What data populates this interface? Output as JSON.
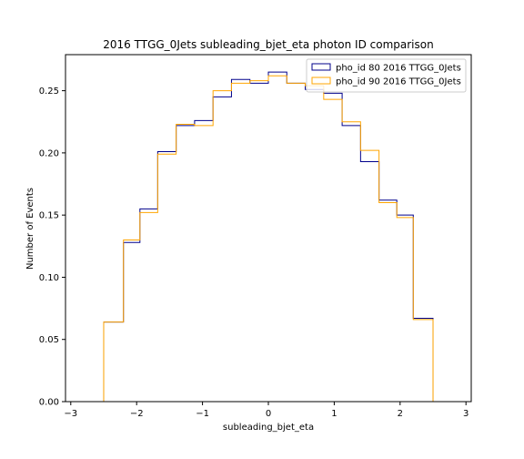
{
  "chart_data": {
    "type": "line",
    "style": "step-histogram",
    "title": "2016 TTGG_0Jets subleading_bjet_eta photon ID comparison",
    "xlabel": "subleading_bjet_eta",
    "ylabel": "Number of Events",
    "xlim": [
      -3.08,
      3.08
    ],
    "ylim": [
      0.0,
      0.279
    ],
    "xticks": [
      -3,
      -2,
      -1,
      0,
      1,
      2,
      3
    ],
    "xtick_labels": [
      "−3",
      "−2",
      "−1",
      "0",
      "1",
      "2",
      "3"
    ],
    "yticks": [
      0.0,
      0.05,
      0.1,
      0.15,
      0.2,
      0.25
    ],
    "ytick_labels": [
      "0.00",
      "0.05",
      "0.10",
      "0.15",
      "0.20",
      "0.25"
    ],
    "grid": false,
    "legend_position": "top-right",
    "bin_edges": [
      -2.5,
      -2.2,
      -1.95,
      -1.68,
      -1.4,
      -1.12,
      -0.84,
      -0.56,
      -0.28,
      0.0,
      0.28,
      0.56,
      0.84,
      1.12,
      1.4,
      1.68,
      1.95,
      2.2,
      2.5
    ],
    "series": [
      {
        "name": "pho_id 80 2016 TTGG_0Jets",
        "color": "#00008b",
        "values": [
          0.064,
          0.128,
          0.155,
          0.201,
          0.222,
          0.226,
          0.245,
          0.259,
          0.256,
          0.265,
          0.256,
          0.251,
          0.248,
          0.222,
          0.193,
          0.162,
          0.15,
          0.067
        ]
      },
      {
        "name": "pho_id 90 2016 TTGG_0Jets",
        "color": "#ffa500",
        "values": [
          0.064,
          0.13,
          0.152,
          0.199,
          0.223,
          0.222,
          0.25,
          0.256,
          0.258,
          0.262,
          0.256,
          0.254,
          0.243,
          0.225,
          0.202,
          0.16,
          0.148,
          0.066
        ]
      }
    ]
  }
}
